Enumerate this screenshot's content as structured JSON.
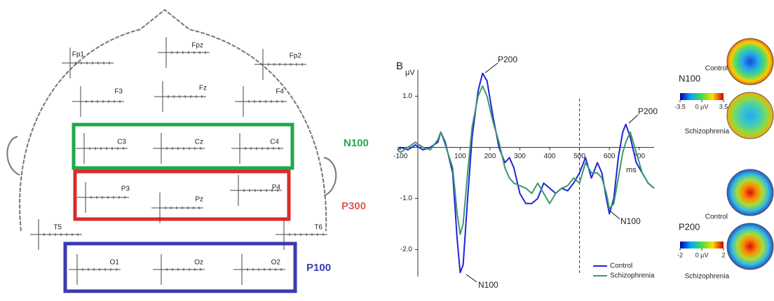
{
  "head_diagram": {
    "electrodes": [
      "Fp1",
      "Fpz",
      "Fp2",
      "F3",
      "Fz",
      "F4",
      "C3",
      "Cz",
      "C4",
      "P3",
      "Pz",
      "P4",
      "T5",
      "T6",
      "O1",
      "Oz",
      "O2"
    ],
    "regions": [
      "N100",
      "P300",
      "P100"
    ]
  },
  "chart_data": {
    "type": "line",
    "panel_label": "B",
    "ylabel": "µV",
    "xlabel": "ms",
    "x": [
      -110,
      -100,
      -75,
      -50,
      -25,
      0,
      25,
      35,
      50,
      75,
      90,
      100,
      110,
      125,
      140,
      160,
      175,
      190,
      210,
      230,
      250,
      265,
      280,
      300,
      320,
      340,
      360,
      380,
      400,
      420,
      440,
      460,
      480,
      500,
      520,
      540,
      560,
      575,
      590,
      600,
      615,
      630,
      645,
      655,
      670,
      690,
      710,
      730,
      750
    ],
    "series": [
      {
        "name": "Control",
        "color": "#2222dd",
        "values": [
          -0.05,
          0.0,
          -0.05,
          0.05,
          -0.05,
          0.0,
          0.1,
          0.3,
          0.1,
          -0.5,
          -1.8,
          -2.45,
          -2.3,
          -1.0,
          0.2,
          1.1,
          1.45,
          1.3,
          0.6,
          0.0,
          -0.3,
          -0.2,
          -0.4,
          -0.9,
          -1.1,
          -1.1,
          -1.0,
          -0.7,
          -0.8,
          -0.9,
          -0.8,
          -0.85,
          -0.7,
          -0.5,
          -0.2,
          -0.6,
          -0.3,
          -0.5,
          -1.0,
          -1.3,
          -1.0,
          -0.2,
          0.3,
          0.45,
          0.2,
          -0.3,
          -0.5,
          -0.7,
          -0.8
        ]
      },
      {
        "name": "Schizophrenia",
        "color": "#3a9a6a",
        "values": [
          -0.05,
          -0.1,
          0.0,
          0.1,
          0.0,
          -0.05,
          0.15,
          0.3,
          0.05,
          -0.4,
          -1.3,
          -1.7,
          -1.5,
          -0.5,
          0.4,
          1.0,
          1.2,
          1.0,
          0.5,
          0.1,
          -0.4,
          -0.6,
          -0.7,
          -0.75,
          -0.8,
          -0.9,
          -0.7,
          -0.9,
          -1.1,
          -0.9,
          -0.8,
          -0.75,
          -0.6,
          -0.7,
          -0.3,
          -0.5,
          -0.5,
          -0.6,
          -0.9,
          -1.2,
          -1.1,
          -0.6,
          -0.1,
          0.1,
          0.3,
          -0.1,
          -0.5,
          -0.7,
          -0.8
        ]
      }
    ],
    "xlim": [
      -110,
      750
    ],
    "ylim": [
      -2.5,
      1.5
    ],
    "xticks": [
      -100,
      100,
      200,
      300,
      400,
      500,
      600,
      700
    ],
    "yticks": [
      {
        "value": -2,
        "label": "-2.0"
      },
      {
        "value": -1,
        "label": "-1.0"
      },
      {
        "value": 1,
        "label": "1.0"
      }
    ],
    "reference_line_x": 500,
    "annotations": [
      "P200",
      "P200",
      "N100",
      "N100"
    ]
  },
  "topomaps": {
    "conditions": [
      "Control",
      "Schizophrenia"
    ],
    "components": [
      {
        "label": "N100",
        "ticks": [
          -3.5,
          {
            "value": 0,
            "label": "0 µV"
          },
          3.5
        ]
      },
      {
        "label": "P200",
        "ticks": [
          -2,
          {
            "value": 0,
            "label": "0 µV"
          },
          2
        ]
      }
    ]
  }
}
